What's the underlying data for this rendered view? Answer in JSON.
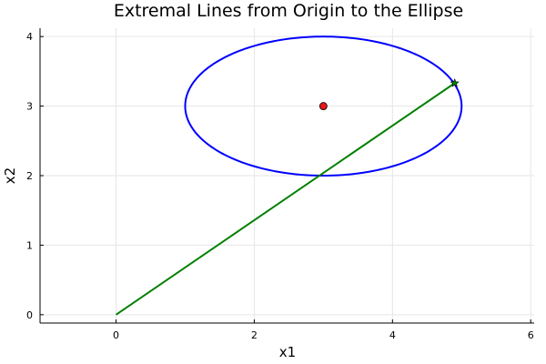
{
  "chart_data": {
    "type": "line",
    "title": "Extremal Lines from Origin to the Ellipse",
    "xlabel": "x1",
    "ylabel": "x2",
    "xlim": [
      -1.1,
      6.05
    ],
    "ylim": [
      -0.12,
      4.12
    ],
    "xticks": [
      0,
      2,
      4,
      6
    ],
    "yticks": [
      0,
      1,
      2,
      3,
      4
    ],
    "grid": true,
    "legend": "none",
    "series": [
      {
        "kind": "ellipse",
        "center": [
          3,
          3
        ],
        "radii": [
          2,
          1
        ],
        "color": "#0000ff"
      },
      {
        "kind": "line",
        "x": [
          0,
          4.9
        ],
        "y": [
          0,
          3.33
        ],
        "color": "#008000"
      },
      {
        "kind": "point",
        "x": 3,
        "y": 3,
        "color": "#e41a1c",
        "marker": "circle"
      },
      {
        "kind": "point",
        "x": 4.9,
        "y": 3.33,
        "color": "#008000",
        "marker": "star"
      }
    ]
  }
}
